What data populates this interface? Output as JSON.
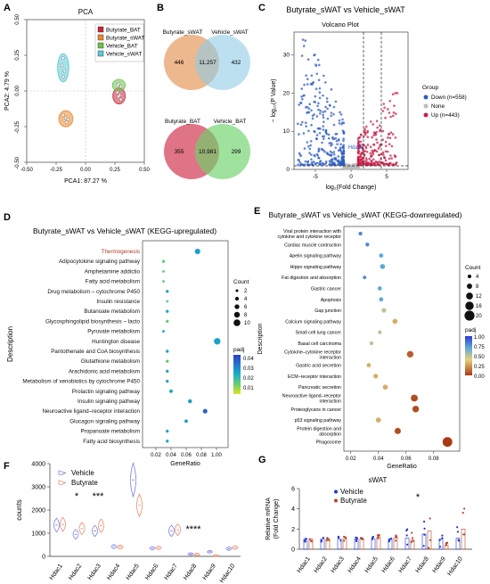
{
  "panels": {
    "A": {
      "letter": "A",
      "title": "PCA",
      "xlabel": "PCA1: 87.27 %",
      "ylabel": "PCA2: 4.79 %",
      "xticks": [
        "-0.50",
        "-0.25",
        "0.00",
        "0.25",
        "0.50"
      ],
      "yticks": [
        "0.50",
        "0.25",
        "0.00",
        "-0.25",
        "-0.50"
      ],
      "legend": [
        "Butyrate_BAT",
        "Butyrate_sWAT",
        "Vehicle_BAT",
        "Vehicle_sWAT"
      ],
      "colors": [
        "#c9263c",
        "#e8892f",
        "#6cc24a",
        "#5bc8d6"
      ]
    },
    "B": {
      "letter": "B",
      "venn1": {
        "left_label": "Butyrate_sWAT",
        "right_label": "Vehicle_sWAT",
        "left": "446",
        "center": "11,257",
        "right": "432"
      },
      "venn2": {
        "left_label": "Butyrate_BAT",
        "right_label": "Vehicle_BAT",
        "left": "355",
        "center": "10,981",
        "right": "299"
      }
    },
    "C": {
      "letter": "C",
      "header": "Butyrate_sWAT vs Vehicle_sWAT",
      "title": "Volcano Plot",
      "xlabel": "log₂(Fold Change)",
      "ylabel": "− log₁₀(P Value)",
      "xticks": [
        "-5",
        "0",
        "5"
      ],
      "yticks": [
        "0",
        "10",
        "20",
        "30"
      ],
      "annotation": "Hdac9",
      "legend_title": "Group",
      "legend": [
        "Down (n=558)",
        "None",
        "Up (n=443)"
      ],
      "colors": [
        "#2f5cc0",
        "#bdbdbd",
        "#c8204a"
      ]
    },
    "D": {
      "letter": "D",
      "title": "Butyrate_sWAT vs Vehicle_sWAT (KEGG-upregulated)",
      "ylabel": "Description",
      "xlabel": "GeneRatio",
      "xticks": [
        "0.02",
        "0.04",
        "0.06",
        "0.08",
        "1.00"
      ],
      "size_title": "Count",
      "size_labels": [
        "2",
        "4",
        "6",
        "8",
        "10"
      ],
      "color_title": "padj",
      "color_labels": [
        "0.04",
        "0.03",
        "0.02",
        "0.01"
      ],
      "terms": [
        "Thermogenesis",
        "Adipocytokine signaling pathway",
        "Amphetamine addictio",
        "Fatty acid metabolism",
        "Drug metabolism – cytochrome P450",
        "Insulin resistance",
        "Butanoate metabolism",
        "Glycosphingolipid biosynthesis – lacto",
        "Pyruvate metabolism",
        "Huntington disease",
        "Pantothenate and CoA biosynthesis",
        "Glutathione metabolism",
        "Arachidonic acid metabolism",
        "Metabolism of xenobiotics by cytochrome P450",
        "Prolactin signaling pathway",
        "Insulin signaling pathway",
        "Neuroactive ligand–receptor interaction",
        "Glucagon signaling pathway",
        "Propanoate metabolism",
        "Fatty acid biosynthesis"
      ]
    },
    "E": {
      "letter": "E",
      "title": "Butyrate_sWAT vs Vehicle_sWAT (KEGG-downregulated)",
      "ylabel": "Description",
      "xlabel": "GeneRatio",
      "xticks": [
        "0.02",
        "0.04",
        "0.06",
        "0.08"
      ],
      "size_title": "Count",
      "size_labels": [
        "4",
        "8",
        "12",
        "16",
        "20"
      ],
      "color_title": "padj",
      "color_labels": [
        "1.00",
        "0.75",
        "0.50",
        "0.25",
        "0.00"
      ],
      "terms": [
        "Viral protein interaction with|cytokine and cytokine receptor",
        "Cardiac muscle contraction",
        "Apelin signaling pathway",
        "Hippo signaling pathway",
        "Fat digestion and absorption",
        "Gastric cancer",
        "Apoptosis",
        "Gap junction",
        "Calcium signaling pathway",
        "Small cell lung cancer",
        "Basal cell carcinoma",
        "Cytokine–cytokine receptor|interaction",
        "Gastric acid secretion",
        "ECM–receptor interaction",
        "Pancreatic secretion",
        "Neuroactive ligand–receptor|interaction",
        "Proteoglycans in cancer",
        "p53 signaling pathway",
        "Protein digestion and|absorption",
        "Phagosome"
      ]
    },
    "F": {
      "letter": "F",
      "ylabel": "counts",
      "yticks": [
        "0",
        "1000",
        "2000",
        "3000",
        "4000"
      ],
      "legend": [
        "Vehicle",
        "Butyrate"
      ],
      "stars1": "*",
      "stars2": "***",
      "stars3": "****",
      "genes": [
        "Hdac1",
        "Hdac2",
        "Hdac3",
        "Hdac4",
        "Hdac5",
        "Hdac6",
        "Hdac7",
        "Hdac8",
        "Hdac9",
        "Hdac10"
      ]
    },
    "G": {
      "letter": "G",
      "title": "sWAT",
      "ylabel": "Relative mRNA|(Fold Change)",
      "yticks": [
        "0",
        "2",
        "4",
        "6"
      ],
      "legend": [
        "Vehicle",
        "Butyrate"
      ],
      "star": "*",
      "genes": [
        "Hdac1",
        "Hdac2",
        "Hdac3",
        "Hdac4",
        "Hdac5",
        "Hdac6",
        "Hdac7",
        "Hdac8",
        "Hdac9",
        "Hdac10"
      ]
    }
  },
  "chart_data": [
    {
      "type": "scatter",
      "panel": "A",
      "xlim": [
        -0.5,
        0.5
      ],
      "ylim": [
        -0.5,
        0.5
      ],
      "series": [
        {
          "name": "Butyrate_BAT",
          "x": [
            0.27,
            0.29,
            0.3,
            0.28
          ],
          "y": [
            -0.01,
            -0.03,
            -0.06,
            -0.04
          ]
        },
        {
          "name": "Butyrate_sWAT",
          "x": [
            -0.19,
            -0.17,
            -0.15,
            -0.16
          ],
          "y": [
            -0.17,
            -0.19,
            -0.2,
            -0.22
          ]
        },
        {
          "name": "Vehicle_BAT",
          "x": [
            0.28,
            0.3,
            0.27
          ],
          "y": [
            0.05,
            0.03,
            0.04
          ]
        },
        {
          "name": "Vehicle_sWAT",
          "x": [
            -0.19,
            -0.2,
            -0.18,
            -0.19
          ],
          "y": [
            0.23,
            0.18,
            0.14,
            0.1
          ]
        }
      ]
    },
    {
      "type": "scatter",
      "panel": "C",
      "xlim": [
        -8,
        8
      ],
      "ylim": [
        0,
        36
      ],
      "series": [
        {
          "name": "Down (n=558)",
          "n": 558
        },
        {
          "name": "None"
        },
        {
          "name": "Up (n=443)",
          "n": 443
        }
      ]
    },
    {
      "type": "scatter",
      "panel": "D",
      "x": [
        0.075,
        0.03,
        0.03,
        0.03,
        0.035,
        0.035,
        0.035,
        0.035,
        0.03,
        0.1,
        0.035,
        0.035,
        0.035,
        0.035,
        0.04,
        0.065,
        0.085,
        0.06,
        0.035,
        0.035
      ],
      "count": [
        8,
        3,
        2,
        2,
        3,
        2,
        3,
        3,
        2,
        10,
        3,
        3,
        3,
        3,
        4,
        5,
        6,
        4,
        3,
        3
      ],
      "padj": [
        0.03,
        0.02,
        0.02,
        0.02,
        0.03,
        0.02,
        0.03,
        0.02,
        0.03,
        0.03,
        0.03,
        0.02,
        0.03,
        0.03,
        0.03,
        0.03,
        0.04,
        0.03,
        0.03,
        0.03
      ]
    },
    {
      "type": "scatter",
      "panel": "E",
      "x": [
        0.027,
        0.032,
        0.042,
        0.043,
        0.03,
        0.041,
        0.042,
        0.044,
        0.052,
        0.041,
        0.035,
        0.063,
        0.033,
        0.038,
        0.045,
        0.066,
        0.067,
        0.04,
        0.054,
        0.09
      ],
      "count": [
        5,
        5,
        6,
        8,
        4,
        6,
        6,
        7,
        8,
        5,
        5,
        12,
        6,
        7,
        8,
        13,
        12,
        8,
        11,
        20
      ],
      "padj": [
        0.8,
        0.8,
        0.7,
        0.7,
        0.8,
        0.7,
        0.7,
        0.5,
        0.3,
        0.5,
        0.5,
        0.1,
        0.3,
        0.3,
        0.3,
        0.05,
        0.05,
        0.3,
        0.05,
        0.0
      ]
    },
    {
      "type": "violin",
      "panel": "F",
      "categories": [
        "Hdac1",
        "Hdac2",
        "Hdac3",
        "Hdac4",
        "Hdac5",
        "Hdac6",
        "Hdac7",
        "Hdac8",
        "Hdac9",
        "Hdac10"
      ],
      "series": [
        {
          "name": "Vehicle",
          "values": [
            1350,
            950,
            1100,
            420,
            3300,
            350,
            1100,
            100,
            200,
            330
          ]
        },
        {
          "name": "Butyrate",
          "values": [
            1380,
            1200,
            1320,
            400,
            2200,
            370,
            1150,
            80,
            20,
            380
          ]
        }
      ]
    },
    {
      "type": "bar",
      "panel": "G",
      "categories": [
        "Hdac1",
        "Hdac2",
        "Hdac3",
        "Hdac4",
        "Hdac5",
        "Hdac6",
        "Hdac7",
        "Hdac8",
        "Hdac9",
        "Hdac10"
      ],
      "series": [
        {
          "name": "Vehicle",
          "values": [
            1.0,
            1.0,
            1.0,
            1.0,
            1.0,
            1.0,
            1.1,
            1.5,
            1.0,
            1.1
          ]
        },
        {
          "name": "Butyrate",
          "values": [
            1.0,
            1.0,
            1.0,
            1.0,
            1.2,
            1.1,
            0.9,
            1.8,
            0.4,
            2.0
          ]
        }
      ],
      "ylim": [
        0,
        6
      ]
    }
  ]
}
